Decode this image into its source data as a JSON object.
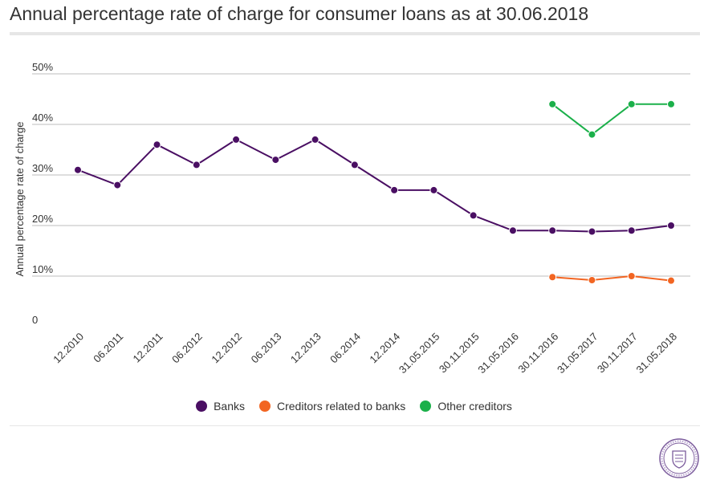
{
  "chart_data": {
    "type": "line",
    "title": "Annual percentage rate of charge for consumer loans as at 30.06.2018",
    "ylabel": "Annual percentage rate of charge",
    "xlabel": "",
    "ylim": [
      0,
      50
    ],
    "y_ticks": [
      "0",
      "10%",
      "20%",
      "30%",
      "40%",
      "50%"
    ],
    "y_tick_values": [
      0,
      10,
      20,
      30,
      40,
      50
    ],
    "categories": [
      "12.2010",
      "06.2011",
      "12.2011",
      "06.2012",
      "12.2012",
      "06.2013",
      "12.2013",
      "06.2014",
      "12.2014",
      "31.05.2015",
      "30.11.2015",
      "31.05.2016",
      "30.11.2016",
      "31.05.2017",
      "30.11.2017",
      "31.05.2018"
    ],
    "grid": true,
    "legend_position": "bottom-center",
    "series": [
      {
        "name": "Banks",
        "color": "#4a0f63",
        "values": [
          31,
          28,
          36,
          32,
          37,
          33,
          37,
          32,
          27,
          27,
          22,
          19,
          19,
          18.8,
          19,
          20
        ]
      },
      {
        "name": "Creditors related to banks",
        "color": "#f26522",
        "values": [
          null,
          null,
          null,
          null,
          null,
          null,
          null,
          null,
          null,
          null,
          null,
          null,
          9.8,
          9.2,
          10,
          9.1
        ]
      },
      {
        "name": "Other creditors",
        "color": "#1bb04a",
        "values": [
          null,
          null,
          null,
          null,
          null,
          null,
          null,
          null,
          null,
          null,
          null,
          null,
          44,
          38,
          44,
          44
        ]
      }
    ]
  },
  "logo_name": "seal-icon"
}
